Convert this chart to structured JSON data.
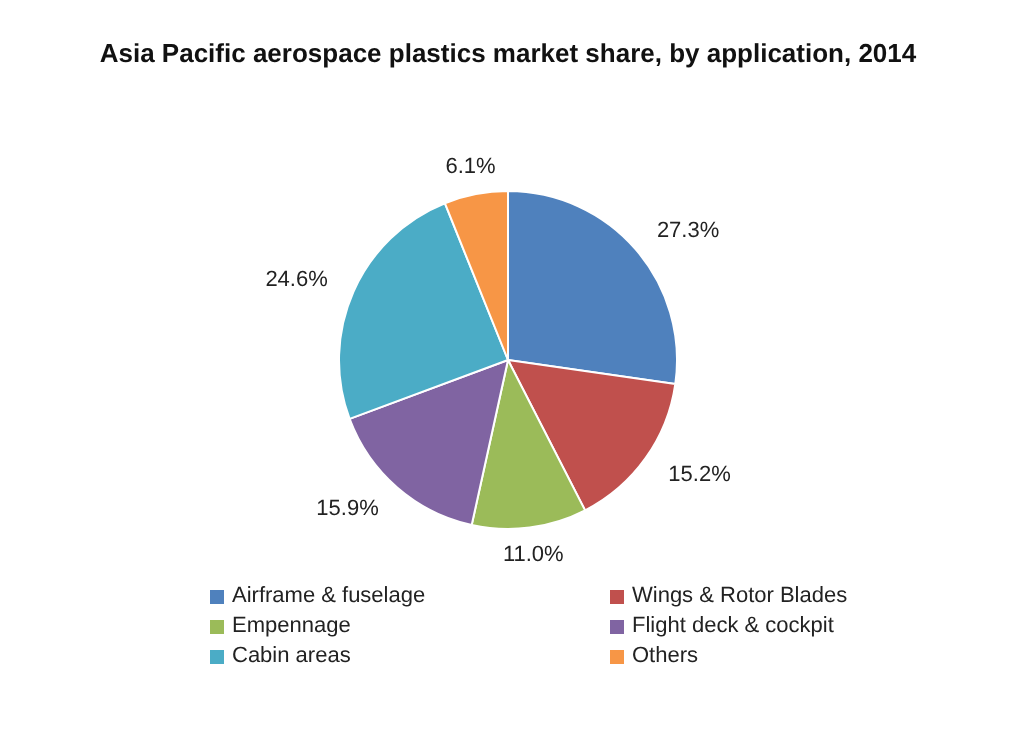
{
  "chart_data": {
    "type": "pie",
    "title": "Asia Pacific aerospace plastics market share, by application, 2014",
    "categories": [
      "Airframe & fuselage",
      "Wings & Rotor Blades",
      "Empennage",
      "Flight deck & cockpit",
      "Cabin areas",
      "Others"
    ],
    "values": [
      27.3,
      15.2,
      11.0,
      15.9,
      24.6,
      6.1
    ],
    "value_labels": [
      "27.3%",
      "15.2%",
      "11.0%",
      "15.9%",
      "24.6%",
      "6.1%"
    ],
    "colors": [
      "#4f81bd",
      "#c0504d",
      "#9bbb59",
      "#8064a2",
      "#4bacc6",
      "#f79646"
    ],
    "legend": "bottom"
  }
}
